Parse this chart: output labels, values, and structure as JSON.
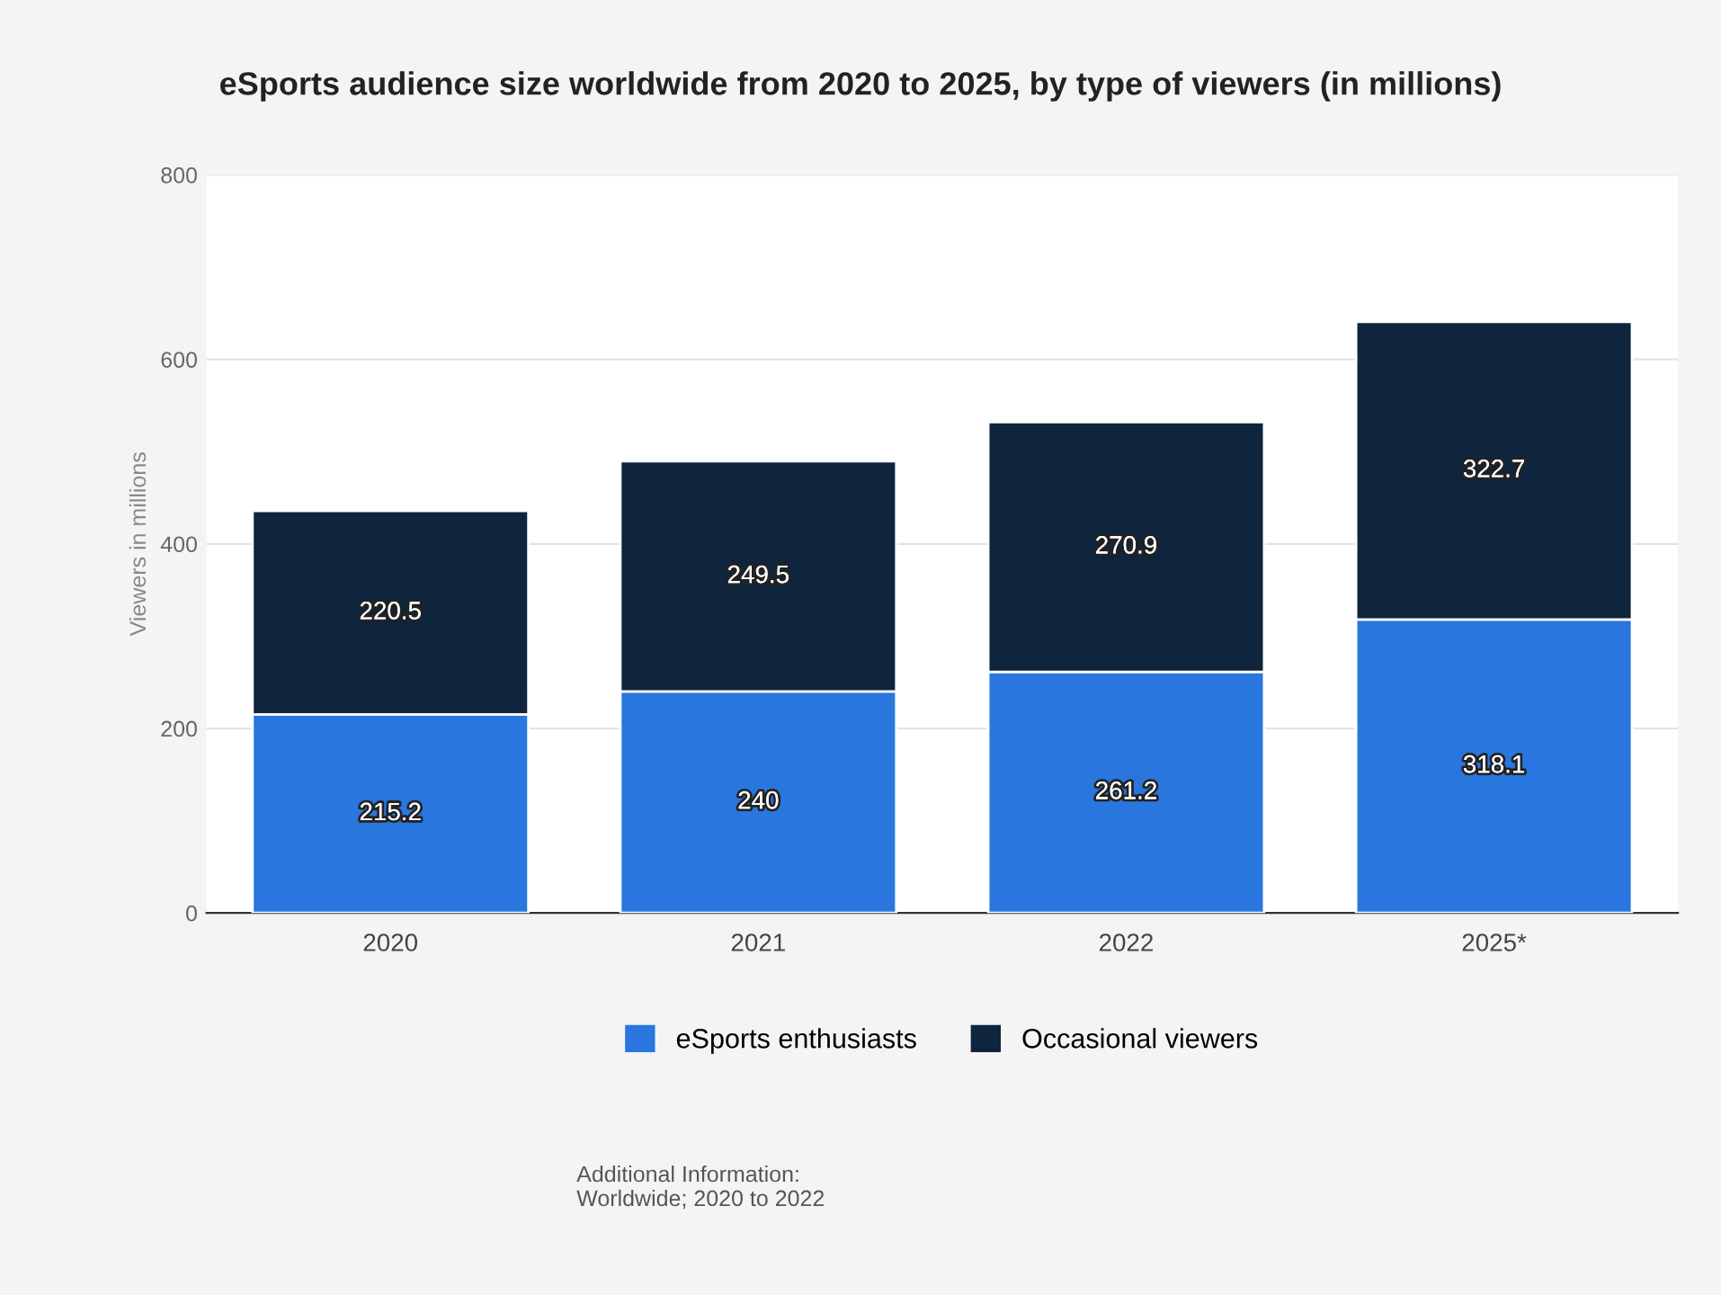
{
  "chart_data": {
    "type": "bar",
    "title": "eSports audience size worldwide from 2020 to 2025, by type of viewers (in millions)",
    "ylabel": "Viewers in millions",
    "categories": [
      "2020",
      "2021",
      "2022",
      "2025*"
    ],
    "series": [
      {
        "name": "eSports enthusiasts",
        "color": "#2876de",
        "values": [
          215.2,
          240,
          261.2,
          318.1
        ]
      },
      {
        "name": "Occasional viewers",
        "color": "#0f243d",
        "values": [
          220.5,
          249.5,
          270.9,
          322.7
        ]
      }
    ],
    "stacked": true,
    "data_labels": true,
    "ylim": [
      0,
      800
    ],
    "yticks": [
      0,
      200,
      400,
      600,
      800
    ],
    "grid": "y",
    "legend": "bottom",
    "annotations": [
      "Additional Information:\nWorldwide; 2020 to 2022"
    ]
  }
}
